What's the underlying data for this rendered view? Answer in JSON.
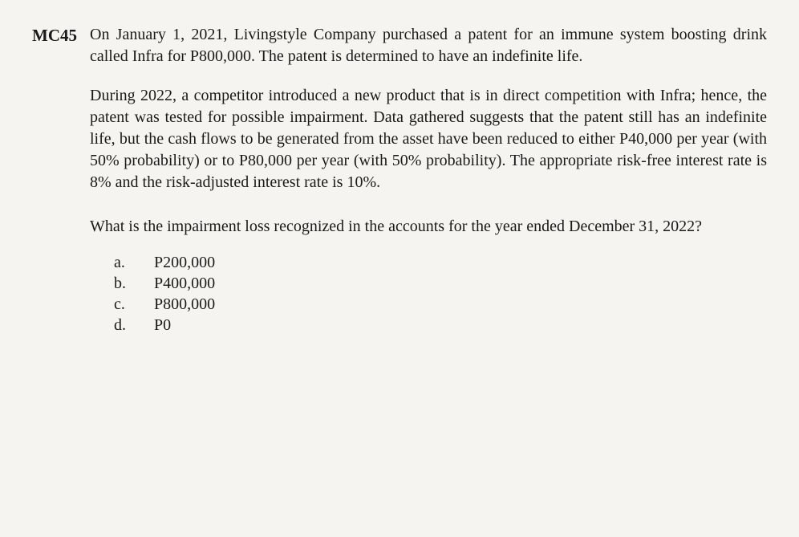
{
  "question_number": "MC45",
  "paragraph1": "On January 1, 2021, Livingstyle Company purchased a patent for an immune system boosting drink called Infra for P800,000. The patent is determined to have an indefinite life.",
  "paragraph2": "During 2022, a competitor introduced a new product that is in direct competition with Infra; hence, the patent was tested for possible impairment. Data gathered suggests that the patent still has an indefinite life, but the cash flows to be generated from the asset have been reduced to either P40,000 per year (with 50% probability) or to P80,000 per year (with 50% probability). The appropriate risk-free interest rate is 8% and the risk-adjusted interest rate is 10%.",
  "question_text": "What is the impairment loss recognized in the accounts for the year ended December 31, 2022?",
  "options": [
    {
      "letter": "a.",
      "value": "P200,000"
    },
    {
      "letter": "b.",
      "value": "P400,000"
    },
    {
      "letter": "c.",
      "value": "P800,000"
    },
    {
      "letter": "d.",
      "value": "P0"
    }
  ]
}
